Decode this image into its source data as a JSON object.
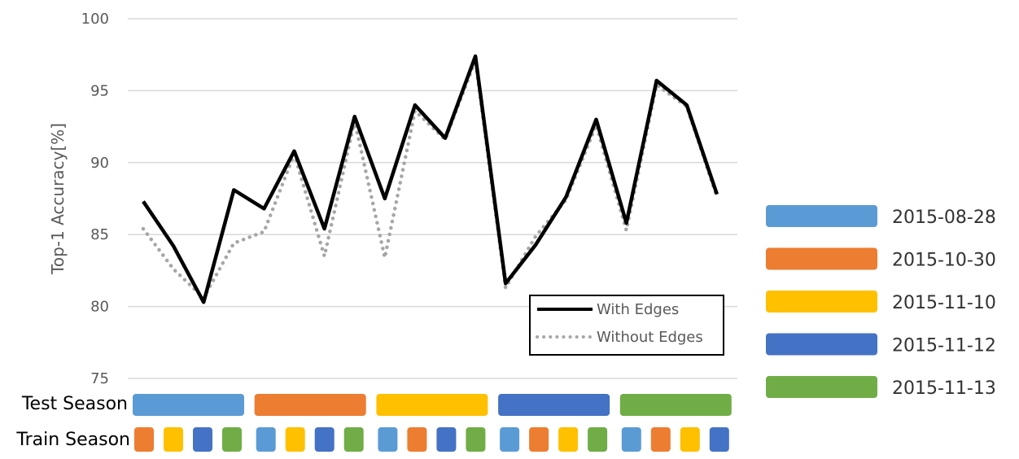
{
  "chart_data": {
    "type": "line",
    "ylabel": "Top-1 Accuracy[%]",
    "ylim": [
      75,
      100
    ],
    "y_ticks": [
      "75",
      "80",
      "85",
      "90",
      "95",
      "100"
    ],
    "x": [
      1,
      2,
      3,
      4,
      5,
      6,
      7,
      8,
      9,
      10,
      11,
      12,
      13,
      14,
      15,
      16,
      17,
      18,
      19,
      20
    ],
    "grid": true,
    "legend_position": "bottom-right",
    "series": [
      {
        "name": "With Edges",
        "color": "#000000",
        "style": "solid",
        "values": [
          87.3,
          84.2,
          80.3,
          88.1,
          86.8,
          90.8,
          85.4,
          93.2,
          87.5,
          94.0,
          91.7,
          97.4,
          81.6,
          84.3,
          87.6,
          93.0,
          85.8,
          95.7,
          94.0,
          87.8
        ]
      },
      {
        "name": "Without Edges",
        "color": "#a6a6a6",
        "style": "dotted",
        "values": [
          85.4,
          82.6,
          80.6,
          84.4,
          85.2,
          90.6,
          83.5,
          92.9,
          83.4,
          93.6,
          91.6,
          97.1,
          81.3,
          84.9,
          87.4,
          92.6,
          85.3,
          95.4,
          93.9,
          87.6
        ]
      }
    ],
    "row_labels": {
      "test": "Test Season",
      "train": "Train Season"
    },
    "season_names": [
      "2015-08-28",
      "2015-10-30",
      "2015-11-10",
      "2015-11-12",
      "2015-11-13"
    ],
    "season_colors": [
      "#5b9bd5",
      "#ed7d31",
      "#ffc000",
      "#4472c4",
      "#70ad47"
    ],
    "test_seasons": [
      0,
      1,
      2,
      3,
      4
    ],
    "train_seasons": [
      [
        1,
        2,
        3,
        4
      ],
      [
        0,
        2,
        3,
        4
      ],
      [
        0,
        1,
        3,
        4
      ],
      [
        0,
        1,
        2,
        4
      ],
      [
        0,
        1,
        2,
        3
      ]
    ]
  }
}
